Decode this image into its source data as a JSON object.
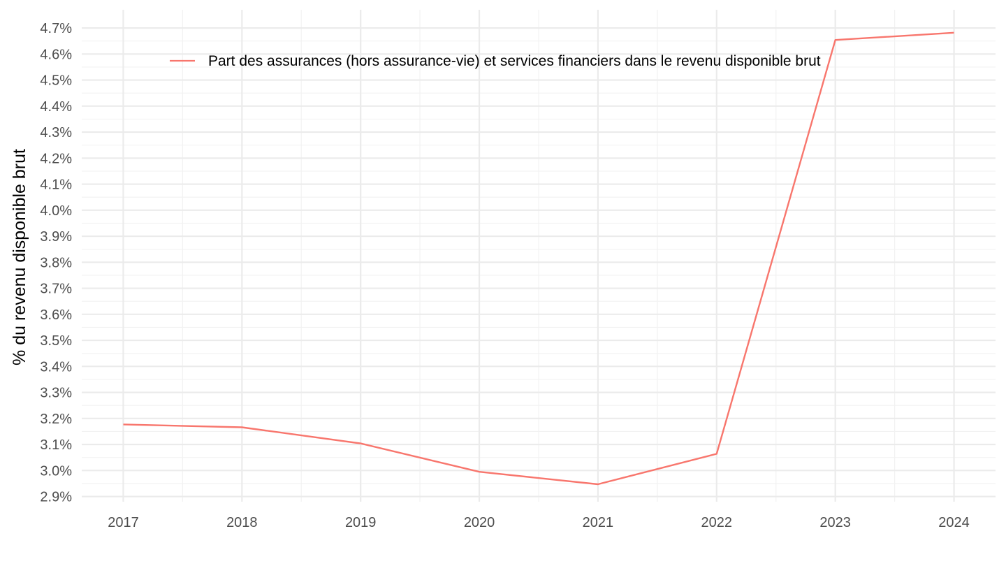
{
  "chart_data": {
    "type": "line",
    "title": "",
    "xlabel": "",
    "ylabel": "% du revenu disponible brut",
    "x": [
      2017,
      2018,
      2019,
      2020,
      2021,
      2022,
      2023,
      2024
    ],
    "x_tick_labels": [
      "2017",
      "2018",
      "2019",
      "2020",
      "2021",
      "2022",
      "2023",
      "2024"
    ],
    "y_tick_labels": [
      "2.9%",
      "3.0%",
      "3.1%",
      "3.2%",
      "3.3%",
      "3.4%",
      "3.5%",
      "3.6%",
      "3.7%",
      "3.8%",
      "3.9%",
      "4.0%",
      "4.1%",
      "4.2%",
      "4.3%",
      "4.4%",
      "4.5%",
      "4.6%",
      "4.7%"
    ],
    "y_tick_values": [
      2.9,
      3.0,
      3.1,
      3.2,
      3.3,
      3.4,
      3.5,
      3.6,
      3.7,
      3.8,
      3.9,
      4.0,
      4.1,
      4.2,
      4.3,
      4.4,
      4.5,
      4.6,
      4.7
    ],
    "xlim": [
      2016.65,
      2024.35
    ],
    "ylim": [
      2.88,
      4.77
    ],
    "grid": true,
    "legend_position": "top",
    "series": [
      {
        "name": "Part des assurances (hors assurance-vie) et services financiers dans le revenu disponible brut",
        "color": "#F8766D",
        "values": [
          3.177,
          3.166,
          3.104,
          2.995,
          2.947,
          3.064,
          4.654,
          4.682
        ]
      }
    ]
  }
}
